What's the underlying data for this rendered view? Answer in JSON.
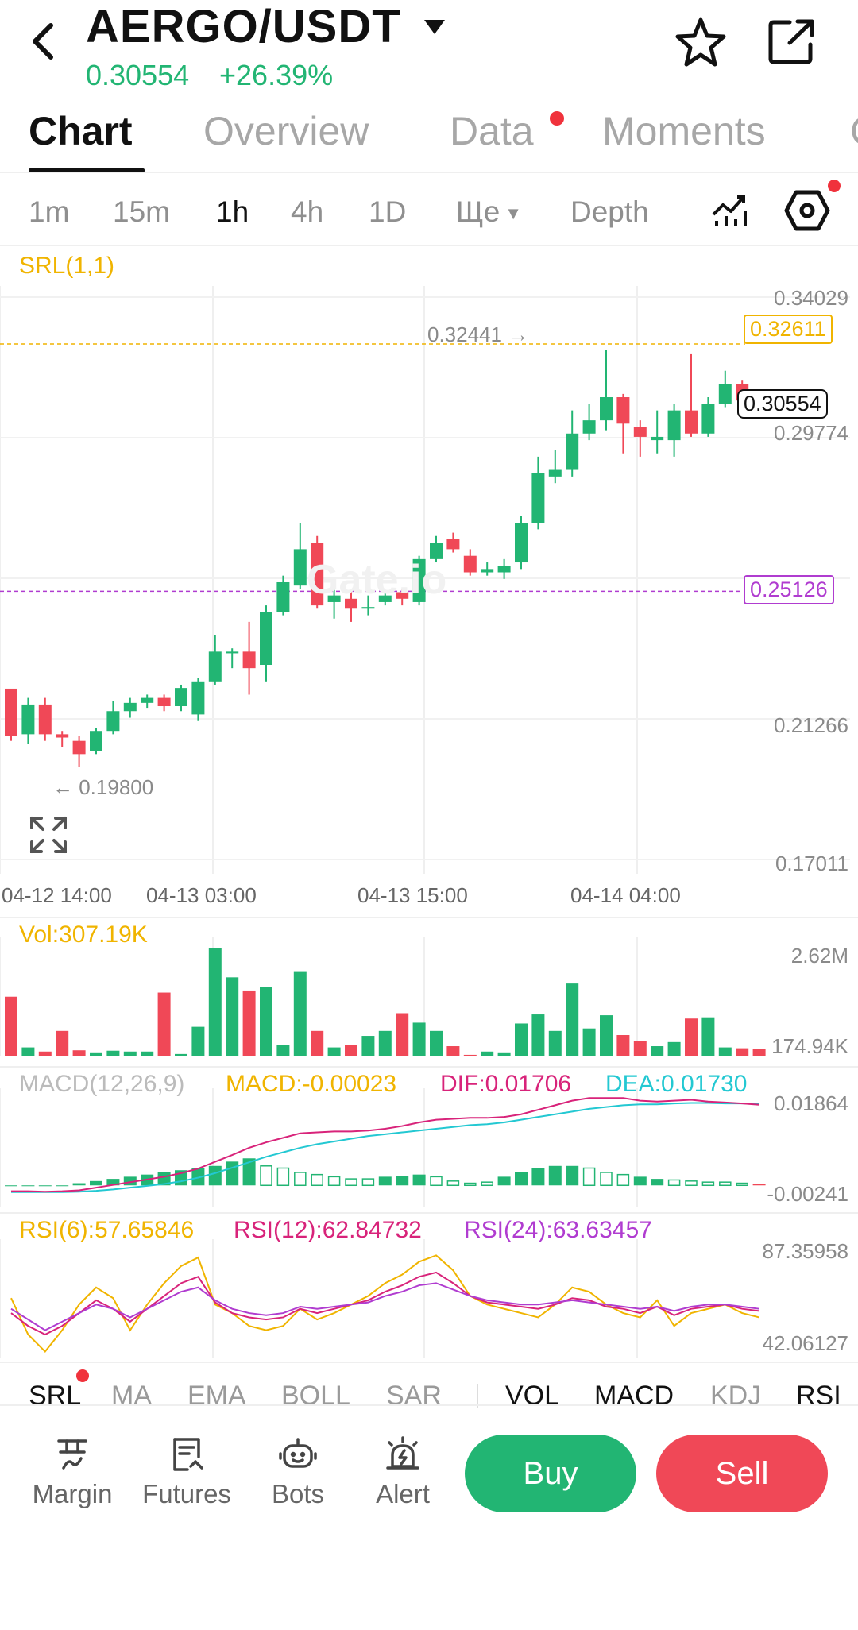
{
  "header": {
    "pair": "AERGO/USDT",
    "price": "0.30554",
    "change": "+26.39%",
    "icons": [
      "back-arrow-icon",
      "dropdown-caret-icon",
      "star-icon",
      "share-icon"
    ]
  },
  "tabs": [
    {
      "label": "Chart",
      "active": true
    },
    {
      "label": "Overview"
    },
    {
      "label": "Data",
      "badge": true
    },
    {
      "label": "Moments"
    },
    {
      "label": "C"
    }
  ],
  "intervals": [
    {
      "label": "1m"
    },
    {
      "label": "15m"
    },
    {
      "label": "1h",
      "active": true
    },
    {
      "label": "4h"
    },
    {
      "label": "1D"
    },
    {
      "label": "Ще"
    },
    {
      "label": "Depth"
    }
  ],
  "toolbar_icons": [
    "indicator-chart-icon",
    "settings-icon"
  ],
  "main_chart": {
    "indicator_label": "SRL(1,1)",
    "y_labels": [
      "0.34029",
      "0.29774",
      "0.21266",
      "0.17011"
    ],
    "x_labels": [
      "04-12 14:00",
      "04-13 03:00",
      "04-13 15:00",
      "04-14 04:00"
    ],
    "high_marker": "0.32441 →",
    "low_marker": "← 0.19800",
    "line_yellow": "0.32611",
    "line_purple": "0.25126",
    "current_price": "0.30554",
    "watermark": "Gate.io",
    "candles": [
      [
        0.2218,
        0.2075,
        0.216,
        0.206
      ],
      [
        0.208,
        0.217,
        0.219,
        0.205
      ],
      [
        0.217,
        0.208,
        0.219,
        0.206
      ],
      [
        0.208,
        0.207,
        0.209,
        0.204
      ],
      [
        0.206,
        0.202,
        0.2075,
        0.198
      ],
      [
        0.203,
        0.209,
        0.21,
        0.202
      ],
      [
        0.209,
        0.215,
        0.218,
        0.208
      ],
      [
        0.215,
        0.2175,
        0.219,
        0.213
      ],
      [
        0.2175,
        0.219,
        0.22,
        0.216
      ],
      [
        0.219,
        0.2165,
        0.22,
        0.215
      ],
      [
        0.2165,
        0.222,
        0.223,
        0.215
      ],
      [
        0.214,
        0.224,
        0.225,
        0.212
      ],
      [
        0.224,
        0.233,
        0.238,
        0.223
      ],
      [
        0.2325,
        0.233,
        0.234,
        0.228
      ],
      [
        0.233,
        0.228,
        0.242,
        0.22
      ],
      [
        0.229,
        0.245,
        0.247,
        0.224
      ],
      [
        0.245,
        0.254,
        0.256,
        0.244
      ],
      [
        0.253,
        0.264,
        0.272,
        0.252
      ],
      [
        0.266,
        0.247,
        0.268,
        0.246
      ],
      [
        0.248,
        0.25,
        0.253,
        0.243
      ],
      [
        0.249,
        0.246,
        0.252,
        0.242
      ],
      [
        0.246,
        0.2465,
        0.25,
        0.244
      ],
      [
        0.248,
        0.25,
        0.251,
        0.247
      ],
      [
        0.251,
        0.249,
        0.252,
        0.247
      ],
      [
        0.248,
        0.261,
        0.262,
        0.247
      ],
      [
        0.261,
        0.266,
        0.268,
        0.26
      ],
      [
        0.267,
        0.264,
        0.269,
        0.263
      ],
      [
        0.262,
        0.257,
        0.264,
        0.256
      ],
      [
        0.257,
        0.258,
        0.26,
        0.256
      ],
      [
        0.257,
        0.259,
        0.261,
        0.255
      ],
      [
        0.26,
        0.272,
        0.274,
        0.258
      ],
      [
        0.272,
        0.287,
        0.292,
        0.27
      ],
      [
        0.286,
        0.288,
        0.294,
        0.284
      ],
      [
        0.288,
        0.299,
        0.306,
        0.286
      ],
      [
        0.299,
        0.303,
        0.308,
        0.297
      ],
      [
        0.303,
        0.31,
        0.3244,
        0.3
      ],
      [
        0.31,
        0.302,
        0.311,
        0.293
      ],
      [
        0.301,
        0.298,
        0.303,
        0.292
      ],
      [
        0.297,
        0.298,
        0.306,
        0.293
      ],
      [
        0.297,
        0.306,
        0.308,
        0.292
      ],
      [
        0.306,
        0.299,
        0.323,
        0.298
      ],
      [
        0.299,
        0.308,
        0.31,
        0.298
      ],
      [
        0.308,
        0.314,
        0.318,
        0.307
      ],
      [
        0.314,
        0.309,
        0.315,
        0.308
      ],
      [
        0.309,
        0.306,
        0.312,
        0.3055
      ]
    ]
  },
  "volume": {
    "label": "Vol:307.19K",
    "y_labels": [
      "2.62M",
      "174.94K"
    ],
    "values": [
      1.45,
      0.22,
      0.12,
      0.62,
      0.15,
      0.1,
      0.14,
      0.12,
      0.12,
      1.55,
      0.06,
      0.72,
      2.62,
      1.92,
      1.6,
      1.68,
      0.28,
      2.05,
      0.62,
      0.22,
      0.28,
      0.5,
      0.62,
      1.05,
      0.82,
      0.62,
      0.25,
      0.04,
      0.12,
      0.1,
      0.8,
      1.02,
      0.62,
      1.77,
      0.68,
      1.0,
      0.52,
      0.38,
      0.25,
      0.35,
      0.92,
      0.95,
      0.22,
      0.2,
      0.18
    ]
  },
  "macd": {
    "label": "MACD(12,26,9)",
    "macd_label": "MACD:-0.00023",
    "dif_label": "DIF:0.01706",
    "dea_label": "DEA:0.01730",
    "y_labels": [
      "0.01864",
      "-0.00241"
    ],
    "hist": [
      0,
      0,
      0,
      0,
      0.0002,
      0.0004,
      0.0006,
      0.0008,
      0.001,
      0.0012,
      0.0014,
      0.0016,
      0.0018,
      0.0022,
      0.0025,
      0.0018,
      0.0016,
      0.0012,
      0.001,
      0.0008,
      0.0006,
      0.0006,
      0.0008,
      0.0009,
      0.001,
      0.0008,
      0.0004,
      0.0002,
      0.0003,
      0.0008,
      0.0012,
      0.0016,
      0.0018,
      0.0018,
      0.0016,
      0.0012,
      0.001,
      0.0008,
      0.0006,
      0.0005,
      0.0004,
      0.0003,
      0.0003,
      0.0002,
      0.0001
    ],
    "hist_colors": [
      "g",
      "g",
      "g",
      "g",
      "g",
      "g",
      "g",
      "g",
      "g",
      "g",
      "g",
      "g",
      "g",
      "g",
      "g",
      "o",
      "o",
      "o",
      "o",
      "o",
      "o",
      "o",
      "g",
      "g",
      "g",
      "o",
      "o",
      "o",
      "o",
      "g",
      "g",
      "g",
      "g",
      "g",
      "o",
      "o",
      "o",
      "g",
      "g",
      "o",
      "o",
      "o",
      "o",
      "o",
      "r"
    ],
    "dif": [
      -0.002,
      -0.002,
      -0.0021,
      -0.002,
      -0.0018,
      -0.0012,
      -0.0006,
      0.0,
      0.0006,
      0.0012,
      0.002,
      0.003,
      0.0045,
      0.006,
      0.0076,
      0.0088,
      0.0098,
      0.0108,
      0.011,
      0.0112,
      0.0112,
      0.0114,
      0.0118,
      0.0124,
      0.0132,
      0.0138,
      0.014,
      0.0142,
      0.0142,
      0.0144,
      0.015,
      0.016,
      0.017,
      0.018,
      0.0186,
      0.0186,
      0.0186,
      0.018,
      0.0178,
      0.018,
      0.0182,
      0.0178,
      0.0176,
      0.0174,
      0.0171
    ],
    "dea": [
      -0.0022,
      -0.0022,
      -0.0022,
      -0.0022,
      -0.0021,
      -0.0019,
      -0.0016,
      -0.0012,
      -0.0008,
      -0.0004,
      0.0002,
      0.001,
      0.002,
      0.0032,
      0.0044,
      0.0056,
      0.0066,
      0.0076,
      0.0084,
      0.009,
      0.0096,
      0.0102,
      0.0106,
      0.011,
      0.0114,
      0.0118,
      0.0122,
      0.0126,
      0.0128,
      0.0132,
      0.0138,
      0.0144,
      0.015,
      0.0156,
      0.0162,
      0.0166,
      0.017,
      0.0172,
      0.0172,
      0.0174,
      0.0175,
      0.0175,
      0.0174,
      0.0174,
      0.0173
    ]
  },
  "rsi": {
    "rsi6_label": "RSI(6):57.65846",
    "rsi12_label": "RSI(12):62.84732",
    "rsi24_label": "RSI(24):63.63457",
    "y_labels": [
      "87.35958",
      "42.06127"
    ],
    "rsi6": [
      65,
      48,
      40,
      50,
      62,
      70,
      65,
      50,
      62,
      72,
      80,
      84,
      62,
      58,
      52,
      50,
      52,
      60,
      55,
      58,
      62,
      66,
      72,
      76,
      82,
      85,
      78,
      66,
      62,
      60,
      58,
      56,
      62,
      70,
      68,
      62,
      58,
      56,
      64,
      52,
      58,
      60,
      62,
      58,
      56
    ],
    "rsi12": [
      58,
      52,
      48,
      52,
      58,
      64,
      60,
      54,
      60,
      66,
      72,
      75,
      63,
      58,
      56,
      55,
      56,
      60,
      58,
      60,
      62,
      64,
      68,
      71,
      75,
      77,
      72,
      66,
      63,
      62,
      61,
      60,
      62,
      65,
      64,
      61,
      60,
      58,
      61,
      57,
      60,
      61,
      62,
      60,
      59
    ],
    "rsi24": [
      60,
      55,
      50,
      54,
      58,
      62,
      60,
      56,
      60,
      64,
      68,
      70,
      64,
      60,
      58,
      57,
      58,
      61,
      60,
      61,
      62,
      63,
      66,
      68,
      71,
      72,
      69,
      66,
      64,
      63,
      62,
      62,
      63,
      64,
      63,
      62,
      61,
      60,
      61,
      59,
      61,
      62,
      62,
      61,
      60
    ]
  },
  "indicator_tabs": [
    {
      "label": "SRL",
      "badge": true
    },
    {
      "label": "MA"
    },
    {
      "label": "EMA"
    },
    {
      "label": "BOLL"
    },
    {
      "label": "SAR"
    },
    {
      "label": "VOL",
      "dark": true
    },
    {
      "label": "MACD",
      "dark": true
    },
    {
      "label": "KDJ"
    },
    {
      "label": "RSI",
      "dark": true
    }
  ],
  "bottom": {
    "items": [
      {
        "label": "Margin",
        "icon": "margin-icon"
      },
      {
        "label": "Futures",
        "icon": "futures-icon"
      },
      {
        "label": "Bots",
        "icon": "bots-icon"
      },
      {
        "label": "Alert",
        "icon": "alert-icon"
      }
    ],
    "buy": "Buy",
    "sell": "Sell"
  },
  "colors": {
    "up": "#22b573",
    "down": "#f04857",
    "yellow": "#f0b400",
    "purple": "#b03cd0",
    "magenta": "#d8237a",
    "cyan": "#23c8d2"
  }
}
